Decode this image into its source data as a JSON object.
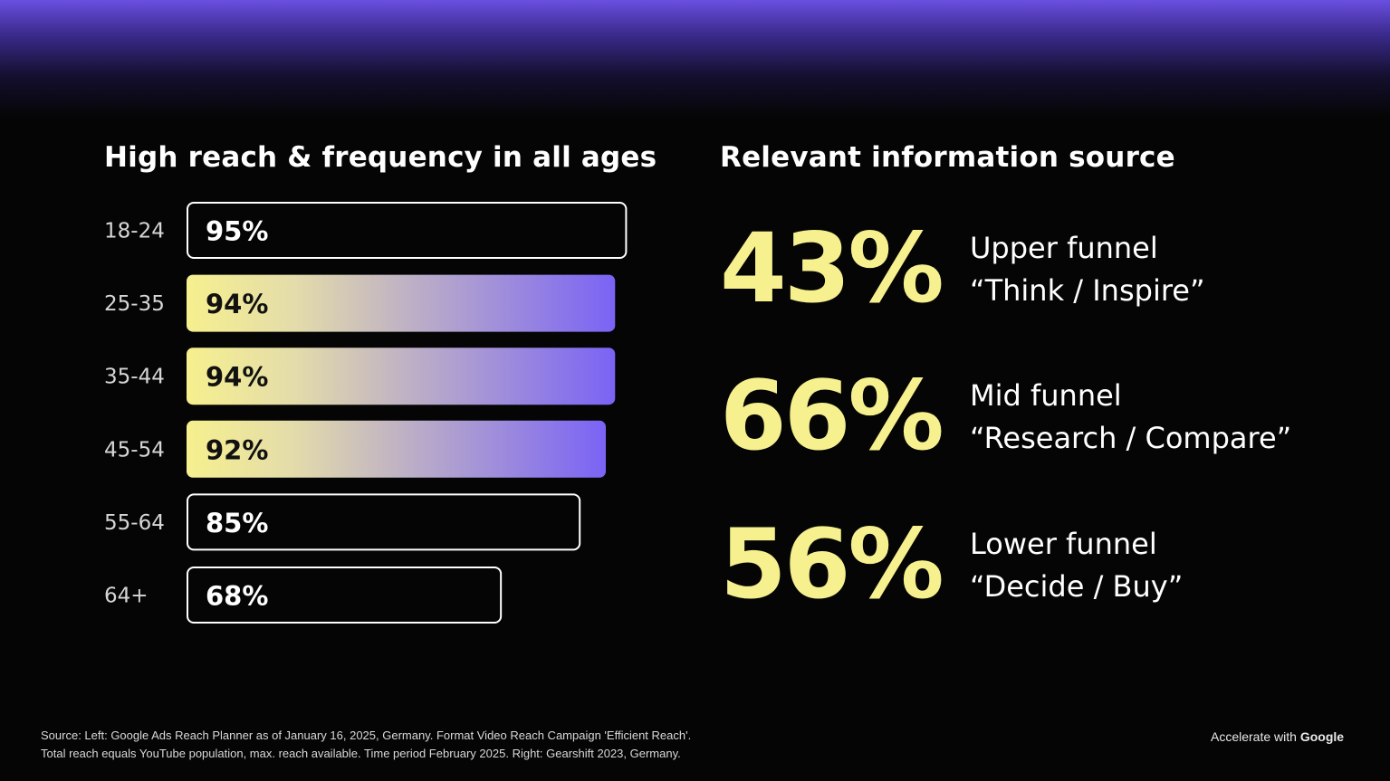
{
  "chart_data": {
    "type": "bar",
    "orientation": "horizontal",
    "title": "High reach & frequency in all ages",
    "categories": [
      "18-24",
      "25-35",
      "35-44",
      "45-54",
      "55-64",
      "64+"
    ],
    "values": [
      95,
      94,
      94,
      92,
      85,
      68
    ],
    "value_labels": [
      "95%",
      "94%",
      "94%",
      "92%",
      "85%",
      "68%"
    ],
    "highlighted": [
      false,
      true,
      true,
      true,
      false,
      false
    ],
    "xlim": [
      0,
      100
    ],
    "grid": false,
    "colors": {
      "outline": "#ffffff",
      "highlight_start": "#f6f08e",
      "highlight_end": "#7a63f5"
    }
  },
  "right_panel": {
    "title": "Relevant information source",
    "stats": [
      {
        "value": "43%",
        "stage": "Upper funnel",
        "quote": "“Think / Inspire”"
      },
      {
        "value": "66%",
        "stage": "Mid funnel",
        "quote": "“Research / Compare”"
      },
      {
        "value": "56%",
        "stage": "Lower funnel",
        "quote": "“Decide / Buy”"
      }
    ]
  },
  "footer": {
    "source_line1": "Source: Left: Google Ads Reach Planner as of January 16, 2025, Germany. Format Video Reach Campaign 'Efficient Reach'.",
    "source_line2": "Total reach equals YouTube population, max. reach available. Time period February 2025. Right: Gearshift 2023, Germany.",
    "brand_prefix": "Accelerate with ",
    "brand_name": "Google"
  },
  "colors": {
    "background": "#050505",
    "accent_yellow": "#f6f08e",
    "accent_purple": "#7a63f5"
  }
}
